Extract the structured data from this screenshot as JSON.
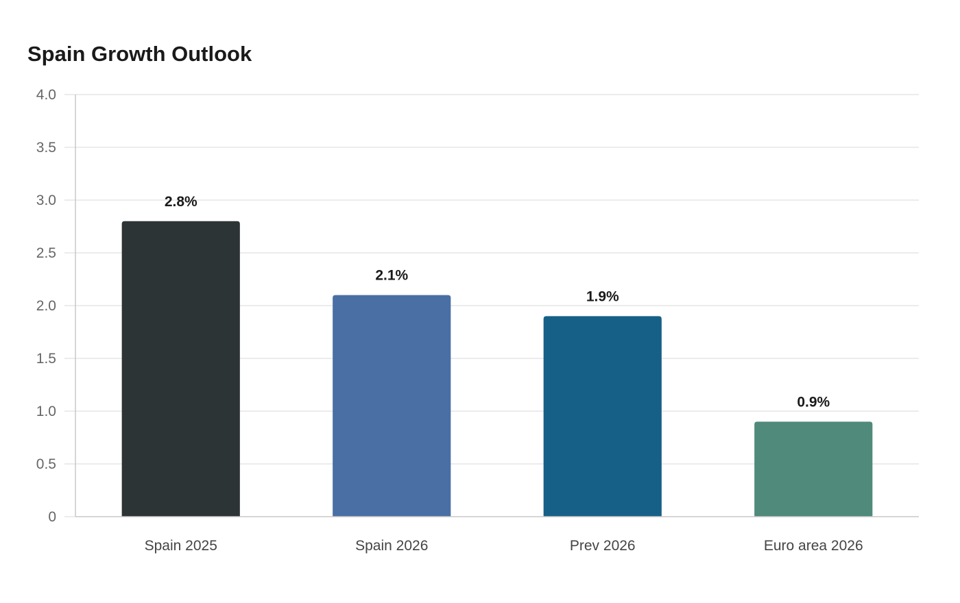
{
  "chart_data": {
    "type": "bar",
    "title": "Spain Growth Outlook",
    "xlabel": "",
    "ylabel": "",
    "ylim": [
      0,
      4.0
    ],
    "yticks": [
      0,
      0.5,
      1.0,
      1.5,
      2.0,
      2.5,
      3.0,
      3.5,
      4.0
    ],
    "ytick_labels": [
      "0",
      "0.5",
      "1.0",
      "1.5",
      "2.0",
      "2.5",
      "3.0",
      "3.5",
      "4.0"
    ],
    "grid": true,
    "legend": "none",
    "categories": [
      "Spain 2025",
      "Spain 2026",
      "Prev 2026",
      "Euro area 2026"
    ],
    "values": [
      2.8,
      2.1,
      1.9,
      0.9
    ],
    "value_labels": [
      "2.8%",
      "2.1%",
      "1.9%",
      "0.9%"
    ],
    "colors": [
      "#2d3436",
      "#4a6fa5",
      "#166088",
      "#4f8a7a"
    ]
  }
}
